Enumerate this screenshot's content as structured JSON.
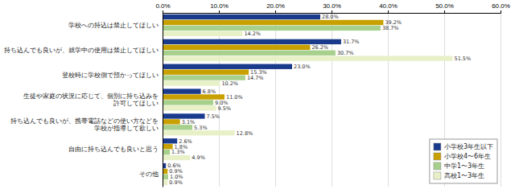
{
  "chart_data": {
    "type": "bar",
    "orientation": "horizontal",
    "categories": [
      "学校への持込は禁止してほしい",
      "持ち込んでも良いが、就学中の使用は禁止してほしい",
      "登校時に学校側で預かってほしい",
      "生徒や家庭の状況に応じて、個別に持ち込みを\n許可してほしい",
      "持ち込んでも良いが、携帯電話などの使い方などを\n学校が指導して欲しい",
      "自由に持ち込んでも良いと思う",
      "その他"
    ],
    "series": [
      {
        "name": "小学校3年生以下",
        "color": "#1A3A8C",
        "values": [
          28.0,
          31.7,
          23.0,
          6.8,
          7.5,
          2.6,
          0.6
        ],
        "value_labels": [
          "28.0%",
          "31.7%",
          "23.0%",
          "6.8%",
          "7.5%",
          "2.6%",
          "0.6%"
        ]
      },
      {
        "name": "小学校4〜6年生",
        "color": "#C8A000",
        "values": [
          39.2,
          26.2,
          15.3,
          11.0,
          3.1,
          1.8,
          0.9
        ],
        "value_labels": [
          "39.2%",
          "26.2%",
          "15.3%",
          "11.0%",
          "3.1%",
          "1.8%",
          "0.9%"
        ]
      },
      {
        "name": "中学1〜3年生",
        "color": "#A8D08D",
        "values": [
          38.7,
          30.7,
          14.7,
          9.0,
          5.3,
          1.3,
          1.0
        ],
        "value_labels": [
          "38.7%",
          "30.7%",
          "14.7%",
          "9.0%",
          "5.3%",
          "1.3%",
          "1.0%"
        ]
      },
      {
        "name": "高校1〜3年生",
        "color": "#E8F0C8",
        "values": [
          14.2,
          51.5,
          10.2,
          9.5,
          12.8,
          4.9,
          0.9
        ],
        "value_labels": [
          "14.2%",
          "51.5%",
          "10.2%",
          "9.5%",
          "12.8%",
          "4.9%",
          "0.9%"
        ]
      }
    ],
    "xlim": [
      0,
      60
    ],
    "xticks": [
      {
        "value": 0,
        "label": "0.0%"
      },
      {
        "value": 10,
        "label": "10.0%"
      },
      {
        "value": 20,
        "label": "20.0%"
      },
      {
        "value": 30,
        "label": "30.0%"
      },
      {
        "value": 40,
        "label": "40.0%"
      },
      {
        "value": 50,
        "label": "50.0%"
      },
      {
        "value": 60,
        "label": "60.0%"
      }
    ],
    "grid": true,
    "data_labels": true,
    "legend": "lower right"
  }
}
